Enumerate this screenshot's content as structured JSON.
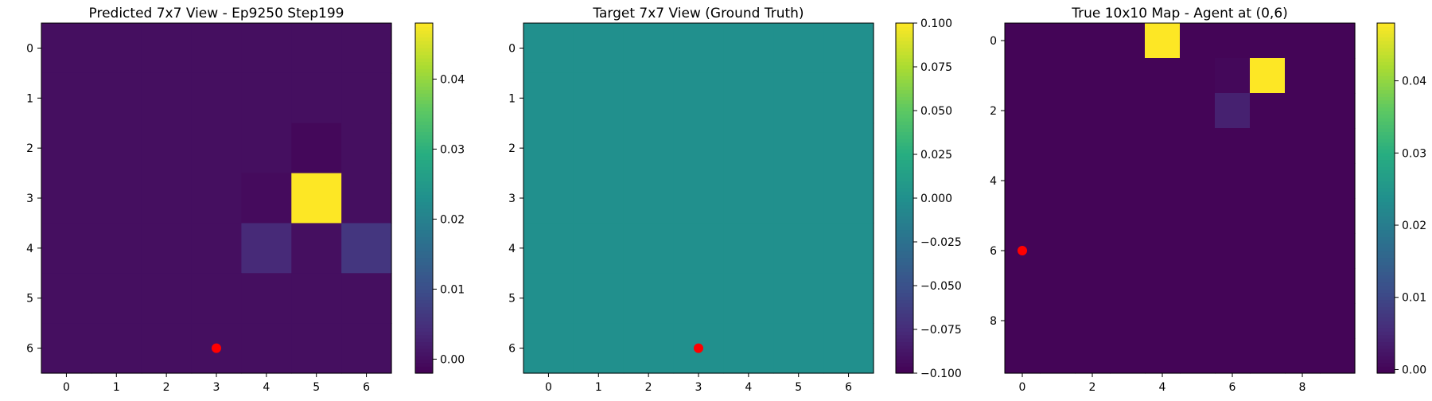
{
  "chart_data": [
    {
      "type": "heatmap",
      "title": "Predicted 7x7 View - Ep9250 Step199",
      "xticks": [
        0,
        1,
        2,
        3,
        4,
        5,
        6
      ],
      "yticks": [
        0,
        1,
        2,
        3,
        4,
        5,
        6
      ],
      "values": [
        [
          0.0,
          0.0,
          0.0,
          0.0,
          0.0,
          0.0,
          0.0
        ],
        [
          0.0,
          0.0,
          0.0,
          0.0,
          0.0,
          0.0,
          0.0
        ],
        [
          0.0,
          0.0,
          0.0,
          0.0,
          0.0,
          -0.001,
          0.0
        ],
        [
          0.0,
          0.0,
          0.0,
          0.0,
          -0.0005,
          0.048,
          0.0
        ],
        [
          0.0,
          0.0,
          0.0,
          0.0,
          0.004,
          0.0,
          0.006
        ],
        [
          0.0,
          0.0,
          0.0,
          0.0,
          0.0,
          0.0,
          0.0
        ],
        [
          0.0,
          0.0,
          0.0,
          0.0,
          0.0,
          0.0,
          0.0
        ]
      ],
      "vmin": -0.002,
      "vmax": 0.048,
      "colorbar_ticks": [
        0.0,
        0.01,
        0.02,
        0.03,
        0.04
      ],
      "colorbar_tick_labels": [
        "0.00",
        "0.01",
        "0.02",
        "0.03",
        "0.04"
      ],
      "agent_marker": {
        "x": 3,
        "y": 6,
        "color": "#ff0000"
      },
      "colormap": "viridis"
    },
    {
      "type": "heatmap",
      "title": "Target 7x7 View (Ground Truth)",
      "xticks": [
        0,
        1,
        2,
        3,
        4,
        5,
        6
      ],
      "yticks": [
        0,
        1,
        2,
        3,
        4,
        5,
        6
      ],
      "values": [
        [
          0,
          0,
          0,
          0,
          0,
          0,
          0
        ],
        [
          0,
          0,
          0,
          0,
          0,
          0,
          0
        ],
        [
          0,
          0,
          0,
          0,
          0,
          0,
          0
        ],
        [
          0,
          0,
          0,
          0,
          0,
          0,
          0
        ],
        [
          0,
          0,
          0,
          0,
          0,
          0,
          0
        ],
        [
          0,
          0,
          0,
          0,
          0,
          0,
          0
        ],
        [
          0,
          0,
          0,
          0,
          0,
          0,
          0
        ]
      ],
      "vmin": -0.1,
      "vmax": 0.1,
      "colorbar_ticks": [
        -0.1,
        -0.075,
        -0.05,
        -0.025,
        0.0,
        0.025,
        0.05,
        0.075,
        0.1
      ],
      "colorbar_tick_labels": [
        "−0.100",
        "−0.075",
        "−0.050",
        "−0.025",
        "0.000",
        "0.025",
        "0.050",
        "0.075",
        "0.100"
      ],
      "agent_marker": {
        "x": 3,
        "y": 6,
        "color": "#ff0000"
      },
      "colormap": "viridis"
    },
    {
      "type": "heatmap",
      "title": "True 10x10 Map - Agent at (0,6)",
      "xticks": [
        0,
        2,
        4,
        6,
        8
      ],
      "yticks": [
        0,
        2,
        4,
        6,
        8
      ],
      "values": [
        [
          0,
          0,
          0,
          0,
          0.048,
          0,
          0,
          0,
          0,
          0
        ],
        [
          0,
          0,
          0,
          0,
          0,
          0,
          0.0005,
          0.048,
          0,
          0
        ],
        [
          0,
          0,
          0,
          0,
          0,
          0,
          0.004,
          0,
          0,
          0
        ],
        [
          0,
          0,
          0,
          0,
          0,
          0,
          0,
          0,
          0,
          0
        ],
        [
          0,
          0,
          0,
          0,
          0,
          0,
          0,
          0,
          0,
          0
        ],
        [
          0,
          0,
          0,
          0,
          0,
          0,
          0,
          0,
          0,
          0
        ],
        [
          0,
          0,
          0,
          0,
          0,
          0,
          0,
          0,
          0,
          0
        ],
        [
          0,
          0,
          0,
          0,
          0,
          0,
          0,
          0,
          0,
          0
        ],
        [
          0,
          0,
          0,
          0,
          0,
          0,
          0,
          0,
          0,
          0
        ],
        [
          0,
          0,
          0,
          0,
          0,
          0,
          0,
          0,
          0,
          0
        ]
      ],
      "vmin": -0.0005,
      "vmax": 0.048,
      "colorbar_ticks": [
        0.0,
        0.01,
        0.02,
        0.03,
        0.04
      ],
      "colorbar_tick_labels": [
        "0.00",
        "0.01",
        "0.02",
        "0.03",
        "0.04"
      ],
      "agent_marker": {
        "x": 0,
        "y": 6,
        "color": "#ff0000"
      },
      "colormap": "viridis"
    }
  ]
}
